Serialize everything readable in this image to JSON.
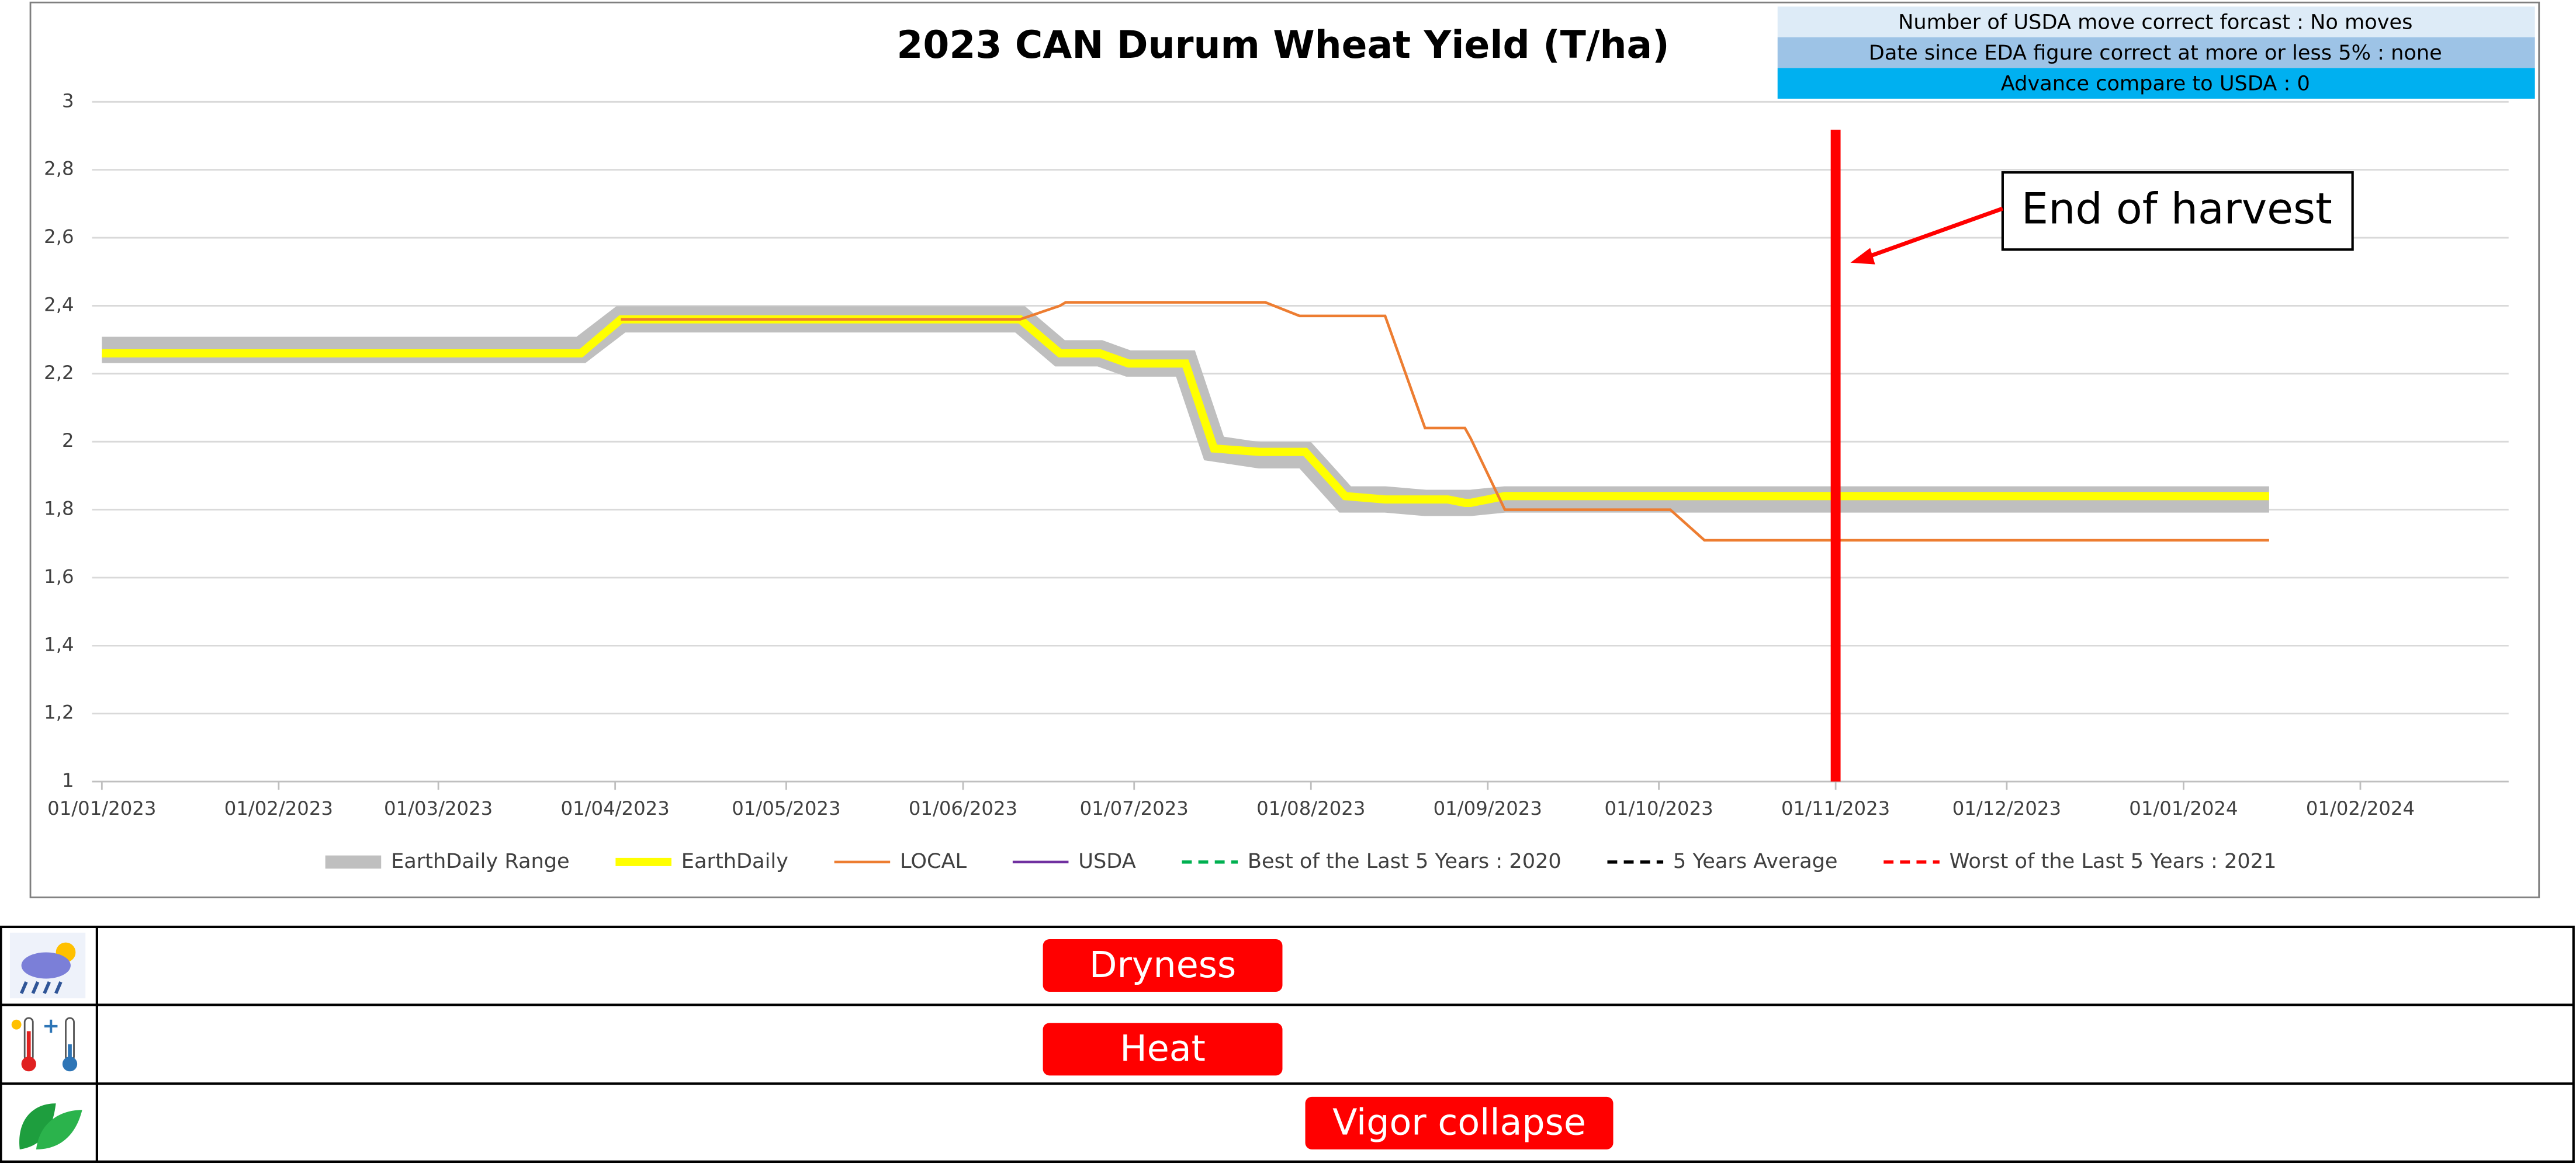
{
  "chart_data": {
    "type": "line",
    "title": "2023 CAN Durum Wheat Yield (T/ha)",
    "info": [
      "Number of USDA move correct forcast : No moves",
      "Date since EDA figure correct at more or less 5% : none",
      "Advance compare to USDA : 0"
    ],
    "info_colors": [
      "#ddebf7",
      "#9dc3e6",
      "#00b0f0"
    ],
    "x": [
      "01/01/2023",
      "26/03/2023",
      "02/04/2023",
      "11/06/2023",
      "18/06/2023",
      "19/06/2023",
      "25/06/2023",
      "30/06/2023",
      "10/07/2023",
      "15/07/2023",
      "23/07/2023",
      "24/07/2023",
      "30/07/2023",
      "31/07/2023",
      "07/08/2023",
      "14/08/2023",
      "21/08/2023",
      "25/08/2023",
      "28/08/2023",
      "29/08/2023",
      "04/09/2023",
      "05/09/2023",
      "03/10/2023",
      "09/10/2023",
      "16/01/2024"
    ],
    "xlim": [
      "01/01/2023",
      "27/02/2024"
    ],
    "xticks": [
      "01/01/2023",
      "01/02/2023",
      "01/03/2023",
      "01/04/2023",
      "01/05/2023",
      "01/06/2023",
      "01/07/2023",
      "01/08/2023",
      "01/09/2023",
      "01/10/2023",
      "01/11/2023",
      "01/12/2023",
      "01/01/2024",
      "01/02/2024"
    ],
    "ylim": [
      1,
      3
    ],
    "yticks": [
      1,
      {
        "value": 1.2,
        "label": "1,2"
      },
      {
        "value": 1.4,
        "label": "1,4"
      },
      {
        "value": 1.6,
        "label": "1,6"
      },
      {
        "value": 1.8,
        "label": "1,8"
      },
      2,
      {
        "value": 2.2,
        "label": "2,2"
      },
      {
        "value": 2.4,
        "label": "2,4"
      },
      {
        "value": 2.6,
        "label": "2,6"
      },
      {
        "value": 2.8,
        "label": "2,8"
      },
      3
    ],
    "grid": true,
    "legend": "bottom",
    "series": [
      {
        "name": "EarthDaily Range",
        "color": "#bfbfbf",
        "values": [
          2.27,
          2.27,
          2.36,
          2.36,
          2.26,
          2.26,
          2.26,
          2.23,
          2.23,
          1.98,
          1.96,
          1.96,
          1.96,
          1.96,
          1.83,
          1.83,
          1.82,
          1.82,
          1.82,
          1.82,
          1.83,
          1.83,
          1.83,
          1.83,
          1.83
        ]
      },
      {
        "name": "EarthDaily",
        "color": "#ffff00",
        "values": [
          2.26,
          2.26,
          2.36,
          2.36,
          2.26,
          2.26,
          2.26,
          2.23,
          2.23,
          1.98,
          1.97,
          1.97,
          1.97,
          1.97,
          1.84,
          1.83,
          1.83,
          1.83,
          1.82,
          1.82,
          1.84,
          1.84,
          1.84,
          1.84,
          1.84
        ]
      },
      {
        "name": "LOCAL",
        "color": "#ed7d31",
        "values": [
          null,
          null,
          2.36,
          2.36,
          2.4,
          2.41,
          2.41,
          2.41,
          2.41,
          2.41,
          2.41,
          2.41,
          2.37,
          2.37,
          2.37,
          2.37,
          2.04,
          2.04,
          2.04,
          2.01,
          1.8,
          1.8,
          1.8,
          1.71,
          1.71
        ]
      },
      {
        "name": "USDA",
        "color": "#7030a0",
        "values": [
          null,
          null,
          null,
          null,
          null,
          null,
          null,
          null,
          null,
          null,
          null,
          null,
          null,
          null,
          null,
          null,
          null,
          null,
          null,
          null,
          null,
          null,
          null,
          null,
          null
        ]
      },
      {
        "name": "Best of the Last 5 Years : 2020",
        "color": "#00b050",
        "dashed": true,
        "values": [
          null,
          null,
          null,
          null,
          null,
          null,
          null,
          null,
          null,
          null,
          null,
          null,
          null,
          null,
          null,
          null,
          null,
          null,
          null,
          null,
          null,
          null,
          null,
          null,
          null
        ]
      },
      {
        "name": "5 Years Average",
        "color": "#000000",
        "dashed": true,
        "values": [
          null,
          null,
          null,
          null,
          null,
          null,
          null,
          null,
          null,
          null,
          null,
          null,
          null,
          null,
          null,
          null,
          null,
          null,
          null,
          null,
          null,
          null,
          null,
          null,
          null
        ]
      },
      {
        "name": "Worst of the Last 5 Years : 2021",
        "color": "#ff0000",
        "dashed": true,
        "values": [
          null,
          null,
          null,
          null,
          null,
          null,
          null,
          null,
          null,
          null,
          null,
          null,
          null,
          null,
          null,
          null,
          null,
          null,
          null,
          null,
          null,
          null,
          null,
          null,
          null
        ]
      }
    ],
    "annotations": [
      {
        "text": "End of harvest",
        "x": "01/11/2023",
        "color": "#ff0000"
      }
    ],
    "alerts": [
      {
        "label": "Dryness",
        "start": "15/06/2023",
        "end": "27/07/2023"
      },
      {
        "label": "Heat",
        "start": "15/06/2023",
        "end": "27/07/2023"
      },
      {
        "label": "Vigor collapse",
        "start": "31/07/2023",
        "end": "23/09/2023"
      }
    ],
    "alert_color": "#ff0000"
  }
}
